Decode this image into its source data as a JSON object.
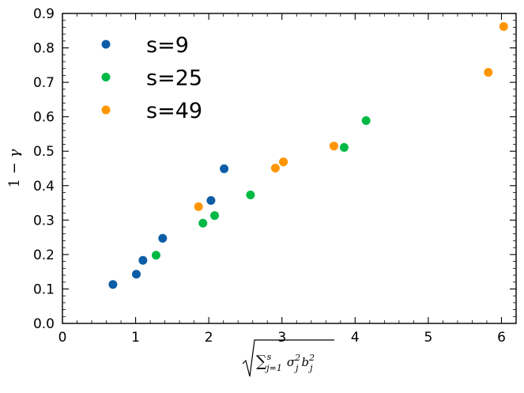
{
  "chart_data": {
    "type": "scatter",
    "title": "",
    "xlabel": "sqrt(Σ_{j=1}^{s} σ_j^2 b_j^2)",
    "ylabel": "1 − γ",
    "xlim": [
      0,
      6.2
    ],
    "ylim": [
      0,
      0.9
    ],
    "xticks": [
      "0",
      "1",
      "2",
      "3",
      "4",
      "5",
      "6"
    ],
    "yticks": [
      "0.0",
      "0.1",
      "0.2",
      "0.3",
      "0.4",
      "0.5",
      "0.6",
      "0.7",
      "0.8",
      "0.9"
    ],
    "grid": false,
    "legend_position": "top-left",
    "series": [
      {
        "name": "s=9",
        "color": "#0c5da5",
        "points": [
          [
            0.69,
            0.113
          ],
          [
            1.01,
            0.143
          ],
          [
            1.1,
            0.183
          ],
          [
            1.37,
            0.247
          ],
          [
            2.03,
            0.357
          ],
          [
            2.21,
            0.449
          ]
        ]
      },
      {
        "name": "s=25",
        "color": "#00b945",
        "points": [
          [
            1.28,
            0.198
          ],
          [
            1.92,
            0.291
          ],
          [
            2.08,
            0.313
          ],
          [
            2.57,
            0.373
          ],
          [
            3.85,
            0.511
          ],
          [
            4.15,
            0.589
          ]
        ]
      },
      {
        "name": "s=49",
        "color": "#ff9500",
        "points": [
          [
            1.86,
            0.339
          ],
          [
            2.91,
            0.451
          ],
          [
            3.02,
            0.469
          ],
          [
            3.71,
            0.515
          ],
          [
            5.82,
            0.729
          ],
          [
            6.03,
            0.862
          ]
        ]
      }
    ]
  }
}
